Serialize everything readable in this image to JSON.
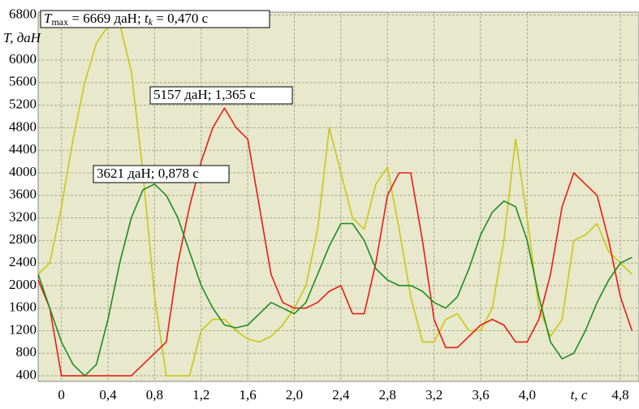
{
  "chart_data": {
    "type": "line",
    "ylabel": "T, даН",
    "xlabel": "t, c",
    "xlim": [
      -0.2,
      4.96
    ],
    "ylim": [
      300,
      6850
    ],
    "xticks": [
      0,
      {
        "value": 0.4,
        "label": "0,4"
      },
      {
        "value": 0.8,
        "label": "0,8"
      },
      {
        "value": 1.2,
        "label": "1,2"
      },
      {
        "value": 1.6,
        "label": "1,6"
      },
      {
        "value": 2.0,
        "label": "2,0"
      },
      {
        "value": 2.4,
        "label": "2,4"
      },
      {
        "value": 2.8,
        "label": "2,8"
      },
      {
        "value": 3.2,
        "label": "3,2"
      },
      {
        "value": 3.6,
        "label": "3,6"
      },
      {
        "value": 4.0,
        "label": "4,0"
      },
      {
        "value": 4.8,
        "label": "4,8"
      }
    ],
    "yticks": [
      400,
      800,
      1200,
      1600,
      2000,
      2400,
      2800,
      3200,
      3600,
      4000,
      4400,
      4800,
      5200,
      5600,
      6000,
      6800
    ],
    "grid": true,
    "x": [
      -0.2,
      -0.1,
      0,
      0.1,
      0.2,
      0.3,
      0.4,
      0.5,
      0.6,
      0.7,
      0.8,
      0.9,
      1.0,
      1.1,
      1.2,
      1.3,
      1.4,
      1.5,
      1.6,
      1.7,
      1.8,
      1.9,
      2.0,
      2.1,
      2.2,
      2.3,
      2.4,
      2.5,
      2.6,
      2.7,
      2.8,
      2.9,
      3.0,
      3.1,
      3.2,
      3.3,
      3.4,
      3.5,
      3.6,
      3.7,
      3.8,
      3.9,
      4.0,
      4.1,
      4.2,
      4.3,
      4.4,
      4.5,
      4.6,
      4.7,
      4.8,
      4.9
    ],
    "series": [
      {
        "color": "#c8c814",
        "values": [
          2200,
          2400,
          3400,
          4600,
          5600,
          6300,
          6600,
          6650,
          5800,
          4000,
          1800,
          400,
          400,
          400,
          1200,
          1400,
          1400,
          1200,
          1050,
          1000,
          1100,
          1300,
          1600,
          2000,
          3000,
          4800,
          4000,
          3200,
          3000,
          3800,
          4100,
          3000,
          1800,
          1000,
          1000,
          1400,
          1500,
          1200,
          1200,
          1600,
          2800,
          4600,
          3200,
          1600,
          1100,
          1400,
          2800,
          2900,
          3100,
          2600,
          2400,
          2200
        ]
      },
      {
        "color": "#e61e14",
        "values": [
          2100,
          1600,
          400,
          400,
          400,
          400,
          400,
          400,
          400,
          600,
          800,
          1000,
          2400,
          3400,
          4200,
          4800,
          5150,
          4800,
          4600,
          3400,
          2200,
          1700,
          1600,
          1600,
          1700,
          1900,
          2000,
          1500,
          1500,
          2400,
          3600,
          4000,
          4000,
          2800,
          1400,
          900,
          900,
          1100,
          1300,
          1400,
          1300,
          1000,
          1000,
          1400,
          2200,
          3400,
          4000,
          3800,
          3600,
          2800,
          1800,
          1200
        ]
      },
      {
        "color": "#1e8c1e",
        "values": [
          2200,
          1600,
          1000,
          600,
          400,
          600,
          1400,
          2400,
          3200,
          3700,
          3800,
          3600,
          3200,
          2600,
          2000,
          1600,
          1300,
          1250,
          1300,
          1500,
          1700,
          1600,
          1500,
          1700,
          2200,
          2700,
          3100,
          3100,
          2800,
          2300,
          2100,
          2000,
          2000,
          1900,
          1700,
          1600,
          1800,
          2300,
          2900,
          3300,
          3500,
          3400,
          2800,
          1800,
          1000,
          700,
          800,
          1200,
          1700,
          2100,
          2400,
          2500
        ]
      }
    ],
    "annotations": [
      {
        "parts": [
          "T",
          "max",
          " = 6669 даН; ",
          "t",
          "k",
          " = 0,470 с"
        ]
      },
      {
        "text": "5157 даН; 1,365 с"
      },
      {
        "text": "3621 даН; 0,878 с"
      }
    ]
  }
}
